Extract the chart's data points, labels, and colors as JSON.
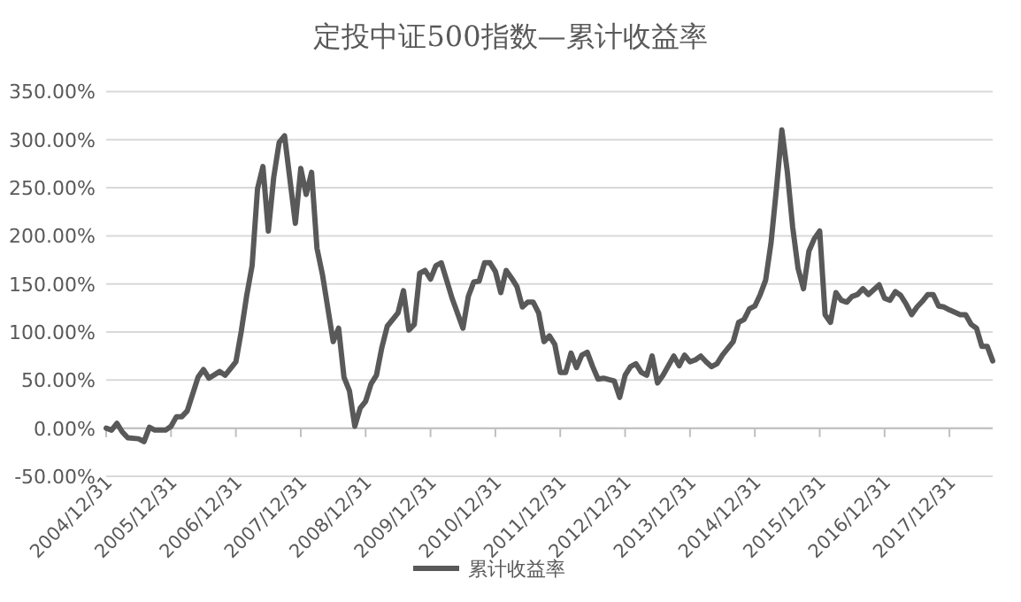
{
  "chart_data": {
    "type": "line",
    "title": "定投中证500指数—累计收益率",
    "legend": "bottom",
    "grid": "y",
    "marker": "none",
    "line_style": "solid",
    "xlim": [
      "2004-12",
      "2018-08"
    ],
    "xticks": [
      {
        "value": "2004-12",
        "label": "2004/12/31"
      },
      {
        "value": "2005-12",
        "label": "2005/12/31"
      },
      {
        "value": "2006-12",
        "label": "2006/12/31"
      },
      {
        "value": "2007-12",
        "label": "2007/12/31"
      },
      {
        "value": "2008-12",
        "label": "2008/12/31"
      },
      {
        "value": "2009-12",
        "label": "2009/12/31"
      },
      {
        "value": "2010-12",
        "label": "2010/12/31"
      },
      {
        "value": "2011-12",
        "label": "2011/12/31"
      },
      {
        "value": "2012-12",
        "label": "2012/12/31"
      },
      {
        "value": "2013-12",
        "label": "2013/12/31"
      },
      {
        "value": "2014-12",
        "label": "2014/12/31"
      },
      {
        "value": "2015-12",
        "label": "2015/12/31"
      },
      {
        "value": "2016-12",
        "label": "2016/12/31"
      },
      {
        "value": "2017-12",
        "label": "2017/12/31"
      }
    ],
    "ylim": [
      -50,
      350
    ],
    "yticks": [
      {
        "value": -50,
        "label": "-50.00%"
      },
      {
        "value": 0,
        "label": "0.00%"
      },
      {
        "value": 50,
        "label": "50.00%"
      },
      {
        "value": 100,
        "label": "100.00%"
      },
      {
        "value": 150,
        "label": "150.00%"
      },
      {
        "value": 200,
        "label": "200.00%"
      },
      {
        "value": 250,
        "label": "250.00%"
      },
      {
        "value": 300,
        "label": "300.00%"
      },
      {
        "value": 350,
        "label": "350.00%"
      }
    ],
    "x": [
      "2004-12",
      "2005-01",
      "2005-02",
      "2005-03",
      "2005-04",
      "2005-06",
      "2005-07",
      "2005-08",
      "2005-09",
      "2005-11",
      "2005-12",
      "2006-01",
      "2006-02",
      "2006-03",
      "2006-05",
      "2006-06",
      "2006-07",
      "2006-09",
      "2006-10",
      "2006-11",
      "2006-12",
      "2007-01",
      "2007-02",
      "2007-03",
      "2007-04",
      "2007-05",
      "2007-06",
      "2007-07",
      "2007-08",
      "2007-09",
      "2007-11",
      "2007-12",
      "2008-01",
      "2008-02",
      "2008-03",
      "2008-04",
      "2008-06",
      "2008-07",
      "2008-08",
      "2008-09",
      "2008-10",
      "2008-11",
      "2008-12",
      "2009-01",
      "2009-02",
      "2009-03",
      "2009-04",
      "2009-06",
      "2009-07",
      "2009-08",
      "2009-09",
      "2009-10",
      "2009-11",
      "2009-12",
      "2010-01",
      "2010-02",
      "2010-04",
      "2010-06",
      "2010-07",
      "2010-08",
      "2010-09",
      "2010-10",
      "2010-11",
      "2010-12",
      "2011-01",
      "2011-02",
      "2011-03",
      "2011-04",
      "2011-05",
      "2011-06",
      "2011-07",
      "2011-08",
      "2011-09",
      "2011-10",
      "2011-11",
      "2011-12",
      "2012-01",
      "2012-02",
      "2012-03",
      "2012-04",
      "2012-05",
      "2012-06",
      "2012-07",
      "2012-08",
      "2012-10",
      "2012-11",
      "2012-12",
      "2013-01",
      "2013-02",
      "2013-03",
      "2013-04",
      "2013-05",
      "2013-06",
      "2013-07",
      "2013-09",
      "2013-10",
      "2013-11",
      "2013-12",
      "2014-01",
      "2014-02",
      "2014-03",
      "2014-04",
      "2014-05",
      "2014-06",
      "2014-08",
      "2014-09",
      "2014-10",
      "2014-11",
      "2014-12",
      "2015-01",
      "2015-02",
      "2015-03",
      "2015-04",
      "2015-05",
      "2015-06",
      "2015-07",
      "2015-08",
      "2015-09",
      "2015-10",
      "2015-11",
      "2015-12",
      "2016-01",
      "2016-02",
      "2016-03",
      "2016-04",
      "2016-05",
      "2016-06",
      "2016-07",
      "2016-08",
      "2016-09",
      "2016-10",
      "2016-11",
      "2016-12",
      "2017-01",
      "2017-02",
      "2017-03",
      "2017-04",
      "2017-05",
      "2017-06",
      "2017-07",
      "2017-08",
      "2017-09",
      "2017-10",
      "2017-11",
      "2017-12",
      "2018-02",
      "2018-03",
      "2018-04",
      "2018-05",
      "2018-06",
      "2018-07",
      "2018-08"
    ],
    "series": [
      {
        "name": "累计收益率",
        "color": "#595959",
        "values": [
          0,
          -2,
          5,
          -4,
          -10,
          -11,
          -14,
          1,
          -2,
          -2,
          2,
          12,
          12,
          18,
          53,
          61,
          52,
          59,
          55,
          62,
          69,
          101,
          138,
          169,
          249,
          272,
          205,
          261,
          297,
          304,
          213,
          270,
          243,
          266,
          187,
          160,
          90,
          104,
          53,
          39,
          2,
          21,
          28,
          46,
          55,
          84,
          106,
          120,
          143,
          102,
          108,
          161,
          164,
          155,
          169,
          172,
          135,
          104,
          137,
          152,
          153,
          172,
          172,
          163,
          141,
          164,
          156,
          147,
          126,
          131,
          131,
          120,
          90,
          96,
          87,
          58,
          58,
          78,
          63,
          76,
          79,
          64,
          51,
          52,
          49,
          32,
          55,
          64,
          67,
          58,
          55,
          75,
          47,
          55,
          75,
          65,
          76,
          69,
          71,
          75,
          69,
          64,
          67,
          76,
          90,
          110,
          113,
          124,
          127,
          139,
          154,
          193,
          249,
          310,
          267,
          209,
          166,
          145,
          184,
          197,
          205,
          118,
          110,
          141,
          133,
          131,
          137,
          139,
          145,
          139,
          144,
          149,
          135,
          133,
          142,
          138,
          129,
          118,
          126,
          132,
          139,
          139,
          127,
          126,
          123,
          118,
          118,
          108,
          104,
          85,
          85,
          70
        ]
      }
    ]
  }
}
